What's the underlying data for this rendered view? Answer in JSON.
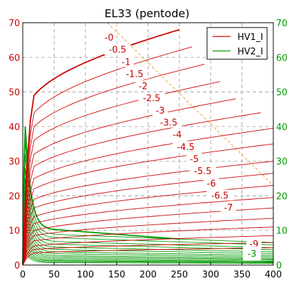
{
  "chart_data": {
    "type": "line",
    "title": "EL33 (pentode)",
    "xlim": [
      0,
      400
    ],
    "ylim": [
      0,
      70
    ],
    "x_ticks": [
      0,
      50,
      100,
      150,
      200,
      250,
      300,
      350,
      400
    ],
    "y_ticks": [
      0,
      10,
      20,
      30,
      40,
      50,
      60,
      70
    ],
    "grid": true,
    "legend": {
      "placement": "top-right",
      "entries": [
        {
          "name": "HV1_I",
          "color": "#cc0000"
        },
        {
          "name": "HV2_I",
          "color": "#009900"
        }
      ]
    },
    "colors": {
      "anode": "#cc0000",
      "screen": "#009900",
      "load_line": "#f0a030",
      "axis_left": "#cc0000",
      "axis_right": "#009900"
    },
    "load_line": {
      "x": [
        135,
        400
      ],
      "y": [
        70,
        23
      ]
    },
    "anode_curves": [
      {
        "label": "-0",
        "knee_y": 49,
        "points": [
          [
            250,
            68
          ]
        ]
      },
      {
        "label": "-0.5",
        "knee_y": 44,
        "points": [
          [
            270,
            63
          ]
        ]
      },
      {
        "label": "-1",
        "knee_y": 40,
        "points": [
          [
            290,
            58
          ]
        ]
      },
      {
        "label": "-1.5",
        "knee_y": 36,
        "points": [
          [
            315,
            53
          ]
        ]
      },
      {
        "label": "-2",
        "knee_y": 32,
        "points": [
          [
            340,
            48
          ]
        ]
      },
      {
        "label": "-2.5",
        "knee_y": 28.5,
        "points": [
          [
            380,
            44
          ]
        ]
      },
      {
        "label": "-3",
        "knee_y": 25,
        "points": [
          [
            400,
            39.5
          ]
        ]
      },
      {
        "label": "-3.5",
        "knee_y": 22,
        "points": [
          [
            400,
            35
          ]
        ]
      },
      {
        "label": "-4",
        "knee_y": 19,
        "points": [
          [
            400,
            30
          ]
        ]
      },
      {
        "label": "-4.5",
        "knee_y": 16.5,
        "points": [
          [
            400,
            26.5
          ]
        ]
      },
      {
        "label": "-5",
        "knee_y": 14,
        "points": [
          [
            400,
            23
          ]
        ]
      },
      {
        "label": "-5.5",
        "knee_y": 12,
        "points": [
          [
            400,
            19.5
          ]
        ]
      },
      {
        "label": "-6",
        "knee_y": 10,
        "points": [
          [
            400,
            16.5
          ]
        ]
      },
      {
        "label": "-6.5",
        "knee_y": 8.5,
        "points": [
          [
            400,
            13.5
          ]
        ]
      },
      {
        "label": "-7",
        "knee_y": 7,
        "points": [
          [
            400,
            11
          ]
        ]
      },
      {
        "label": "",
        "knee_y": 5.5,
        "points": [
          [
            400,
            8.5
          ]
        ]
      },
      {
        "label": "",
        "knee_y": 4.5,
        "points": [
          [
            400,
            6.5
          ]
        ]
      },
      {
        "label": "-9",
        "knee_y": 3.5,
        "points": [
          [
            400,
            5
          ]
        ]
      }
    ],
    "screen_curves": [
      {
        "peak_y": 40,
        "tail_y": 7.5
      },
      {
        "peak_y": 36,
        "tail_y": 6.5
      },
      {
        "peak_y": 32,
        "tail_y": 5.8
      },
      {
        "peak_y": 28,
        "tail_y": 5.0
      },
      {
        "peak_y": 25,
        "tail_y": 4.4
      },
      {
        "peak_y": 22,
        "tail_y": 3.8
      },
      {
        "peak_y": 19,
        "tail_y": 3.3
      },
      {
        "peak_y": 16.5,
        "tail_y": 2.8
      },
      {
        "peak_y": 14,
        "tail_y": 2.4
      },
      {
        "peak_y": 12,
        "tail_y": 2.0
      },
      {
        "peak_y": 10,
        "tail_y": 1.7
      },
      {
        "peak_y": 8.5,
        "tail_y": 1.4
      },
      {
        "peak_y": 7,
        "tail_y": 1.1
      },
      {
        "peak_y": 5.5,
        "tail_y": 0.9
      },
      {
        "peak_y": 4.5,
        "tail_y": 0.7
      },
      {
        "peak_y": 3.5,
        "tail_y": 0.5
      }
    ],
    "screen_label": "-3"
  }
}
